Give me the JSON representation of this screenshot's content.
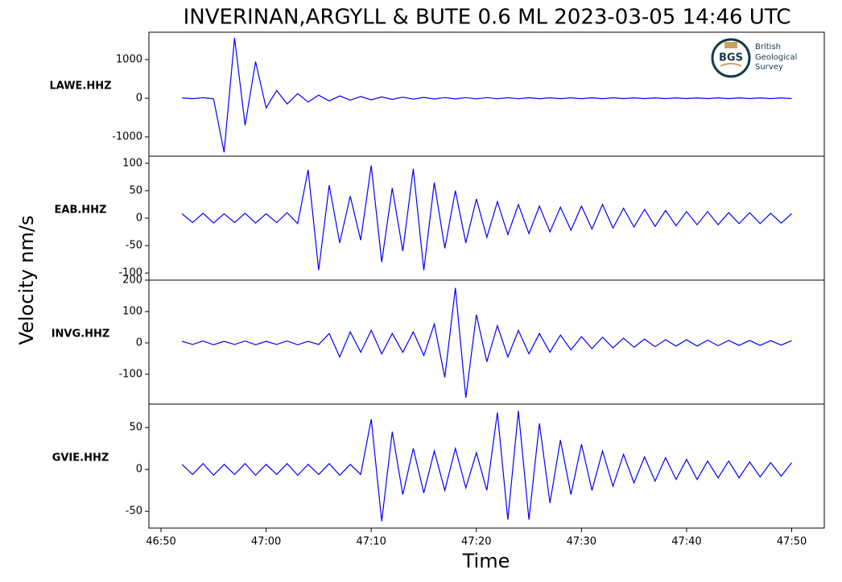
{
  "title": "INVERINAN,ARGYLL & BUTE 0.6 ML   2023-03-05 14:46 UTC",
  "ylabel": "Velocity nm/s",
  "xlabel": "Time",
  "logo": {
    "mark": "BGS",
    "lines": [
      "British",
      "Geological",
      "Survey"
    ]
  },
  "chart_data": [
    {
      "type": "line",
      "label": "LAWE.HHZ",
      "color": "#0000ff",
      "x": [
        52,
        53,
        54,
        55,
        56,
        57,
        58,
        59,
        60,
        61,
        62,
        63,
        64,
        65,
        66,
        67,
        68,
        69,
        70,
        71,
        72,
        73,
        74,
        75,
        76,
        77,
        78,
        79,
        80,
        81,
        82,
        83,
        84,
        85,
        86,
        87,
        88,
        89,
        90,
        91,
        92,
        93,
        94,
        95,
        96,
        97,
        98,
        99,
        100,
        101,
        102,
        103,
        104,
        105,
        106,
        107,
        108,
        109,
        110
      ],
      "values": [
        10,
        -12,
        15,
        -15,
        -1400,
        1560,
        -700,
        950,
        -250,
        200,
        -150,
        120,
        -100,
        80,
        -70,
        60,
        -50,
        45,
        -40,
        35,
        -30,
        28,
        -25,
        22,
        -20,
        18,
        -18,
        16,
        -15,
        15,
        -14,
        14,
        -13,
        13,
        -12,
        12,
        -12,
        12,
        -11,
        11,
        -11,
        11,
        -10,
        10,
        -10,
        10,
        -10,
        10,
        -10,
        10,
        -10,
        10,
        -10,
        10,
        -10,
        10,
        -10,
        10,
        -10
      ],
      "xlim": [
        48.85,
        113.1
      ],
      "ylim": [
        -1500,
        1710
      ],
      "yticks": [
        -1000,
        0,
        1000
      ]
    },
    {
      "type": "line",
      "label": "EAB.HHZ",
      "color": "#0000ff",
      "x": [
        52,
        53,
        54,
        55,
        56,
        57,
        58,
        59,
        60,
        61,
        62,
        63,
        64,
        65,
        66,
        67,
        68,
        69,
        70,
        71,
        72,
        73,
        74,
        75,
        76,
        77,
        78,
        79,
        80,
        81,
        82,
        83,
        84,
        85,
        86,
        87,
        88,
        89,
        90,
        91,
        92,
        93,
        94,
        95,
        96,
        97,
        98,
        99,
        100,
        101,
        102,
        103,
        104,
        105,
        106,
        107,
        108,
        109,
        110
      ],
      "values": [
        8,
        -8,
        9,
        -9,
        8,
        -8,
        9,
        -9,
        8,
        -8,
        10,
        -10,
        88,
        -95,
        60,
        -45,
        40,
        -40,
        96,
        -80,
        55,
        -60,
        90,
        -95,
        65,
        -55,
        50,
        -45,
        35,
        -35,
        30,
        -30,
        25,
        -28,
        22,
        -25,
        20,
        -22,
        22,
        -20,
        25,
        -18,
        18,
        -16,
        16,
        -15,
        14,
        -14,
        12,
        -12,
        12,
        -12,
        10,
        -10,
        10,
        -10,
        9,
        -9,
        8
      ],
      "xlim": [
        48.85,
        113.1
      ],
      "ylim": [
        -113,
        113
      ],
      "yticks": [
        -100,
        -50,
        0,
        50,
        100
      ]
    },
    {
      "type": "line",
      "label": "INVG.HHZ",
      "color": "#0000ff",
      "x": [
        52,
        53,
        54,
        55,
        56,
        57,
        58,
        59,
        60,
        61,
        62,
        63,
        64,
        65,
        66,
        67,
        68,
        69,
        70,
        71,
        72,
        73,
        74,
        75,
        76,
        77,
        78,
        79,
        80,
        81,
        82,
        83,
        84,
        85,
        86,
        87,
        88,
        89,
        90,
        91,
        92,
        93,
        94,
        95,
        96,
        97,
        98,
        99,
        100,
        101,
        102,
        103,
        104,
        105,
        106,
        107,
        108,
        109,
        110
      ],
      "values": [
        5,
        -5,
        6,
        -6,
        5,
        -5,
        6,
        -6,
        5,
        -5,
        6,
        -6,
        5,
        -5,
        30,
        -45,
        35,
        -30,
        40,
        -35,
        30,
        -30,
        35,
        -40,
        60,
        -110,
        175,
        -175,
        90,
        -60,
        55,
        -45,
        40,
        -35,
        30,
        -30,
        25,
        -22,
        20,
        -18,
        18,
        -16,
        15,
        -14,
        12,
        -12,
        10,
        -10,
        10,
        -10,
        9,
        -9,
        8,
        -8,
        8,
        -8,
        7,
        -7,
        7
      ],
      "xlim": [
        48.85,
        113.1
      ],
      "ylim": [
        -195,
        200
      ],
      "yticks": [
        -100,
        0,
        100,
        200
      ]
    },
    {
      "type": "line",
      "label": "GVIE.HHZ",
      "color": "#0000ff",
      "x": [
        52,
        53,
        54,
        55,
        56,
        57,
        58,
        59,
        60,
        61,
        62,
        63,
        64,
        65,
        66,
        67,
        68,
        69,
        70,
        71,
        72,
        73,
        74,
        75,
        76,
        77,
        78,
        79,
        80,
        81,
        82,
        83,
        84,
        85,
        86,
        87,
        88,
        89,
        90,
        91,
        92,
        93,
        94,
        95,
        96,
        97,
        98,
        99,
        100,
        101,
        102,
        103,
        104,
        105,
        106,
        107,
        108,
        109,
        110
      ],
      "values": [
        6,
        -6,
        7,
        -7,
        6,
        -6,
        7,
        -7,
        6,
        -6,
        7,
        -7,
        6,
        -6,
        7,
        -7,
        6,
        -6,
        60,
        -62,
        45,
        -30,
        25,
        -28,
        22,
        -25,
        25,
        -22,
        20,
        -25,
        68,
        -60,
        70,
        -60,
        55,
        -40,
        35,
        -30,
        30,
        -25,
        22,
        -20,
        18,
        -16,
        15,
        -14,
        14,
        -12,
        12,
        -12,
        10,
        -10,
        10,
        -10,
        9,
        -9,
        8,
        -8,
        8
      ],
      "xlim": [
        48.85,
        113.1
      ],
      "ylim": [
        -70,
        78
      ],
      "yticks": [
        -50,
        0,
        50
      ],
      "xticks": [
        {
          "value": 50,
          "label": "46:50"
        },
        {
          "value": 60,
          "label": "47:00"
        },
        {
          "value": 70,
          "label": "47:10"
        },
        {
          "value": 80,
          "label": "47:20"
        },
        {
          "value": 90,
          "label": "47:30"
        },
        {
          "value": 100,
          "label": "47:40"
        },
        {
          "value": 110,
          "label": "47:50"
        }
      ]
    }
  ]
}
